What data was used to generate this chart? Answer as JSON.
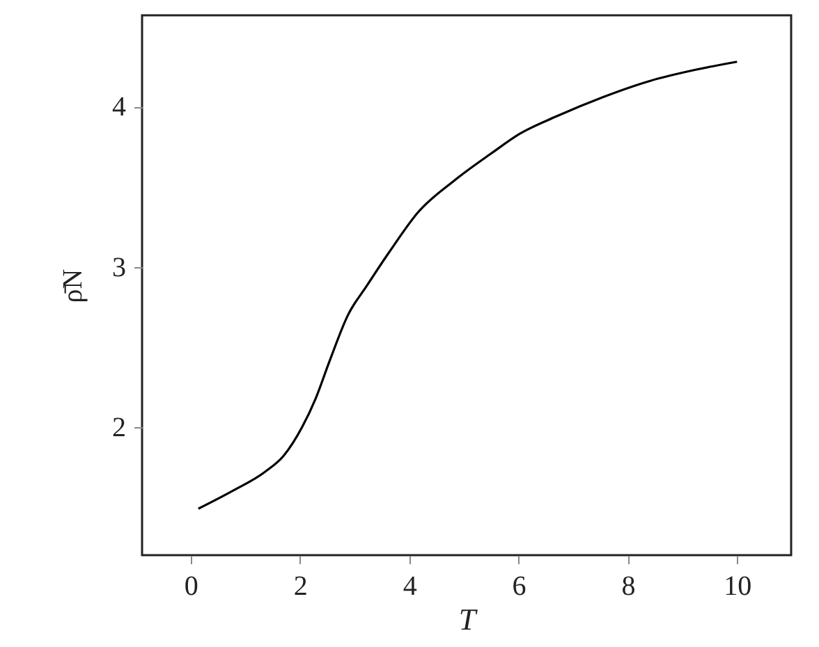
{
  "chart_data": {
    "type": "line",
    "xlabel": "T",
    "ylabel": "ρ̄N",
    "x": [
      0.14,
      0.76,
      1.36,
      1.7,
      2.04,
      2.29,
      2.54,
      2.88,
      3.22,
      3.65,
      4.16,
      4.83,
      5.51,
      6.02,
      6.7,
      7.55,
      8.4,
      9.24,
      10.0
    ],
    "series": [
      {
        "color": "#000000",
        "values": [
          1.49,
          1.6,
          1.72,
          1.82,
          2.0,
          2.18,
          2.41,
          2.7,
          2.88,
          3.1,
          3.34,
          3.54,
          3.71,
          3.83,
          3.94,
          4.06,
          4.16,
          4.23,
          4.28
        ]
      }
    ],
    "xlim": [
      -0.89,
      10.99
    ],
    "ylim": [
      1.2,
      4.57
    ],
    "xticks": [
      0,
      2,
      4,
      6,
      8,
      10
    ],
    "yticks": [
      2,
      3,
      4
    ],
    "grid": false,
    "marker": "none",
    "line_style": "solid"
  }
}
